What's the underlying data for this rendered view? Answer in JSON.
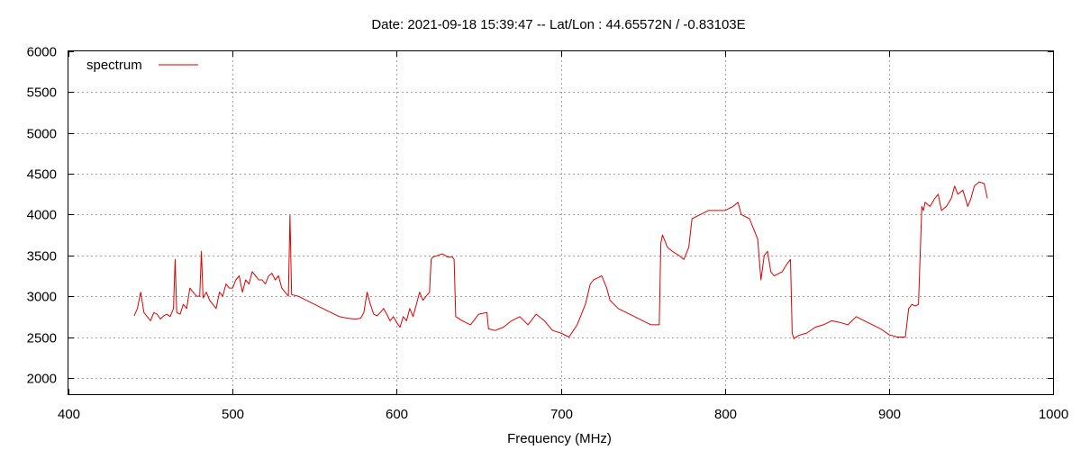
{
  "chart_data": {
    "type": "line",
    "title": "Date: 2021-09-18 15:39:47  --  Lat/Lon : 44.65572N / -0.83103E",
    "xlabel": "Frequency (MHz)",
    "ylabel": "",
    "xlim": [
      400,
      1000
    ],
    "ylim": [
      1800,
      6000
    ],
    "x_ticks": [
      400,
      500,
      600,
      700,
      800,
      900,
      1000
    ],
    "y_ticks": [
      2000,
      2500,
      3000,
      3500,
      4000,
      4500,
      5000,
      5500,
      6000
    ],
    "grid": true,
    "legend": {
      "position": "top-left",
      "entries": [
        "spectrum"
      ]
    },
    "colors": {
      "line": "#dd0000",
      "grid": "#a0a0a0",
      "frame": "#000000"
    },
    "series": [
      {
        "name": "spectrum",
        "x": [
          440,
          442,
          444,
          446,
          448,
          450,
          452,
          454,
          456,
          458,
          460,
          462,
          464,
          465,
          466,
          468,
          470,
          472,
          474,
          476,
          478,
          480,
          481,
          482,
          484,
          486,
          488,
          490,
          492,
          494,
          496,
          498,
          500,
          502,
          504,
          506,
          508,
          510,
          512,
          514,
          516,
          518,
          520,
          522,
          524,
          526,
          528,
          530,
          532,
          534,
          535,
          536,
          540,
          545,
          550,
          555,
          560,
          565,
          570,
          575,
          578,
          580,
          582,
          584,
          586,
          588,
          590,
          592,
          594,
          596,
          598,
          600,
          602,
          604,
          606,
          608,
          610,
          612,
          614,
          616,
          618,
          620,
          621,
          622,
          625,
          628,
          631,
          634,
          635,
          636,
          640,
          645,
          650,
          655,
          656,
          660,
          665,
          670,
          675,
          680,
          685,
          690,
          695,
          700,
          705,
          710,
          715,
          718,
          720,
          722,
          725,
          728,
          730,
          735,
          740,
          745,
          750,
          755,
          760,
          761,
          762,
          765,
          768,
          772,
          775,
          778,
          780,
          785,
          790,
          795,
          800,
          805,
          808,
          810,
          815,
          820,
          822,
          824,
          826,
          828,
          830,
          835,
          838,
          840,
          841,
          842,
          845,
          850,
          855,
          860,
          865,
          870,
          875,
          880,
          885,
          890,
          895,
          900,
          905,
          910,
          912,
          914,
          916,
          918,
          920,
          921,
          922,
          925,
          928,
          930,
          932,
          935,
          938,
          940,
          942,
          945,
          948,
          950,
          952,
          955,
          958,
          960
        ],
        "y": [
          2760,
          2850,
          3050,
          2800,
          2750,
          2700,
          2800,
          2780,
          2720,
          2760,
          2780,
          2750,
          2850,
          3450,
          2800,
          2780,
          2900,
          2850,
          3100,
          3050,
          3000,
          3000,
          3550,
          2980,
          3050,
          2950,
          2900,
          2850,
          3050,
          3000,
          3150,
          3100,
          3100,
          3200,
          3250,
          3050,
          3200,
          3150,
          3300,
          3250,
          3200,
          3200,
          3150,
          3250,
          3280,
          3200,
          3250,
          3100,
          3050,
          3000,
          3990,
          3020,
          3000,
          2950,
          2900,
          2850,
          2800,
          2750,
          2730,
          2720,
          2730,
          2800,
          3050,
          2900,
          2780,
          2760,
          2800,
          2850,
          2780,
          2700,
          2750,
          2680,
          2620,
          2750,
          2700,
          2850,
          2750,
          2900,
          3050,
          2950,
          3000,
          3050,
          3450,
          3480,
          3500,
          3520,
          3480,
          3480,
          3450,
          2750,
          2700,
          2650,
          2780,
          2800,
          2600,
          2580,
          2620,
          2700,
          2750,
          2650,
          2780,
          2700,
          2580,
          2550,
          2500,
          2650,
          2900,
          3150,
          3200,
          3220,
          3250,
          3100,
          2950,
          2850,
          2800,
          2750,
          2700,
          2650,
          2650,
          3650,
          3750,
          3600,
          3550,
          3500,
          3450,
          3600,
          3950,
          4000,
          4050,
          4050,
          4050,
          4100,
          4150,
          4000,
          3950,
          3700,
          3200,
          3500,
          3550,
          3300,
          3250,
          3300,
          3400,
          3450,
          2550,
          2480,
          2520,
          2550,
          2620,
          2650,
          2700,
          2680,
          2650,
          2750,
          2700,
          2650,
          2600,
          2530,
          2500,
          2500,
          2850,
          2900,
          2880,
          2900,
          4100,
          4050,
          4150,
          4100,
          4200,
          4250,
          4050,
          4100,
          4200,
          4350,
          4250,
          4300,
          4100,
          4200,
          4350,
          4400,
          4380,
          4200
        ]
      }
    ]
  }
}
